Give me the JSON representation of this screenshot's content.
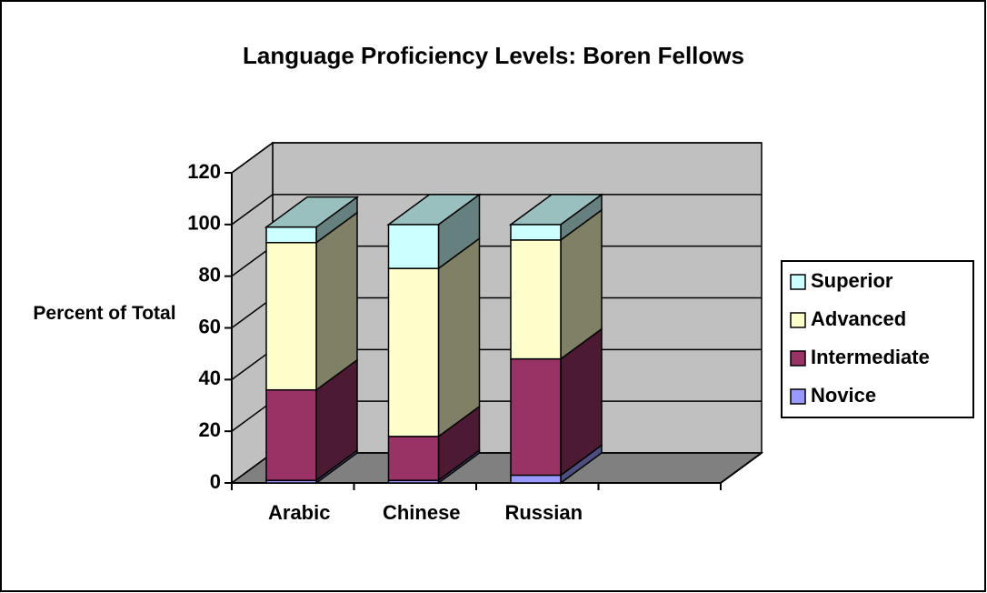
{
  "chart_data": {
    "type": "bar3d_stacked",
    "title": "Language Proficiency Levels: Boren Fellows",
    "y_axis_label": "Percent of Total",
    "categories": [
      "Arabic",
      "Chinese",
      "Russian"
    ],
    "series": [
      {
        "name": "Novice",
        "color": "#9999ff",
        "values": [
          1,
          1,
          3
        ]
      },
      {
        "name": "Intermediate",
        "color": "#993366",
        "values": [
          35,
          17,
          45
        ]
      },
      {
        "name": "Advanced",
        "color": "#ffffcc",
        "values": [
          57,
          65,
          46
        ]
      },
      {
        "name": "Superior",
        "color": "#ccffff",
        "values": [
          6,
          17,
          6
        ]
      }
    ],
    "ylim": [
      0,
      120
    ],
    "yticks": [
      0,
      20,
      40,
      60,
      80,
      100,
      120
    ],
    "grid": true,
    "legend": "right"
  }
}
